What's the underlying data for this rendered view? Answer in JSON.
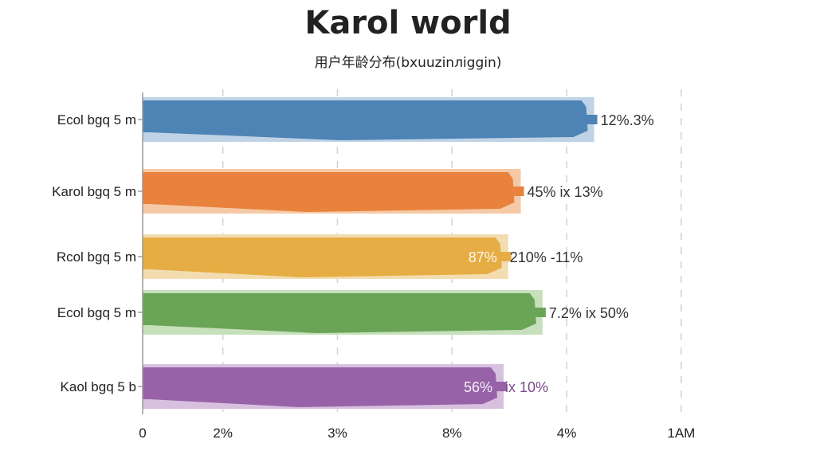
{
  "header": {
    "title": "Karol world",
    "subtitle": "用户年龄分布(bxuuzinлiggin)"
  },
  "chart_data": {
    "type": "bar",
    "orientation": "horizontal",
    "title": "Karol world",
    "subtitle": "用户年龄分布(bxuuzinлiggin)",
    "categories": [
      "Ecol bgq 5 m",
      "Karol bgq 5 m",
      "Rcol bgq 5 m",
      "Ecol bgq 5 m",
      "Kaol bgq 5 b"
    ],
    "values": [
      3.94,
      3.3,
      3.19,
      3.49,
      3.15
    ],
    "labels": [
      "12%.3%",
      "45% ix 13%",
      "210% -11%",
      "7.2% ix 50%",
      "ix 10%"
    ],
    "inner_labels": [
      "",
      "",
      "87%",
      "",
      "56%"
    ],
    "x_ticks": [
      {
        "value": 0,
        "label": "0"
      },
      {
        "value": 0.7,
        "label": "2%"
      },
      {
        "value": 1.7,
        "label": "3%"
      },
      {
        "value": 2.7,
        "label": "8%"
      },
      {
        "value": 3.7,
        "label": "4%"
      },
      {
        "value": 4.7,
        "label": "1AM"
      }
    ],
    "xlim": [
      0,
      5
    ],
    "grid": true,
    "colors": [
      "#4e84b5",
      "#e8823c",
      "#e6ad44",
      "#6aa456",
      "#9862a8"
    ],
    "light_colors": [
      "#bfd3e6",
      "#f6c9a6",
      "#f3ddb0",
      "#c7e0bc",
      "#d7c1df"
    ],
    "label_colors": [
      "#333333",
      "#333333",
      "#333333",
      "#333333",
      "#7a4a8a"
    ]
  }
}
